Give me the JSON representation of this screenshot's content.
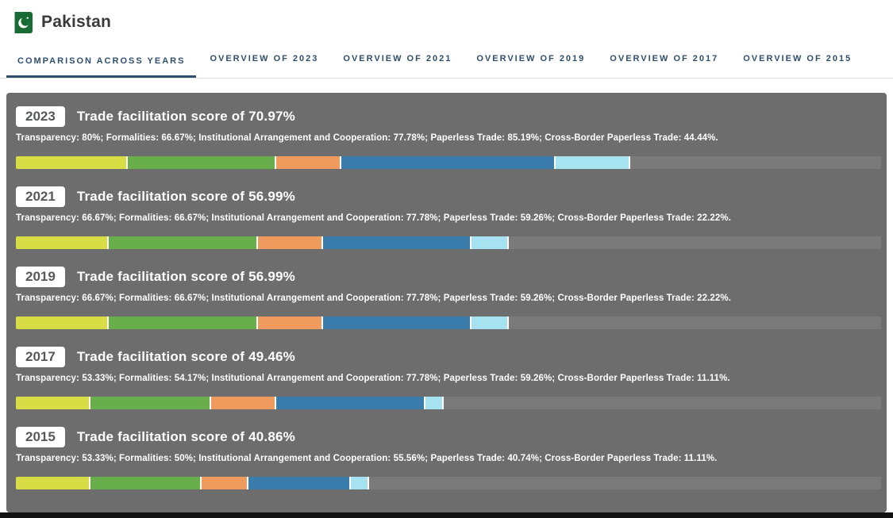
{
  "header": {
    "title": "Pakistan",
    "flag_colors": {
      "green": "#176b33",
      "white": "#ffffff"
    }
  },
  "tabs": [
    {
      "label": "Comparison across years",
      "active": true
    },
    {
      "label": "Overview of 2023",
      "active": false
    },
    {
      "label": "Overview of 2021",
      "active": false
    },
    {
      "label": "Overview of 2019",
      "active": false
    },
    {
      "label": "Overview of 2017",
      "active": false
    },
    {
      "label": "Overview of 2015",
      "active": false
    }
  ],
  "segment_names": [
    "transparency",
    "formalities",
    "institutional-arrangement-and-cooperation",
    "paperless-trade",
    "cross-border-paperless-trade"
  ],
  "segment_colors": [
    "#d8dd45",
    "#68ae4b",
    "#f09b5e",
    "#3a7cab",
    "#a6e2ef"
  ],
  "panel_colors": {
    "background": "#6d6d6d",
    "track": "#7a7a7a",
    "separator": "#ffffff"
  },
  "accent_color": "#2f4f6e",
  "years": [
    {
      "year": "2023",
      "score_label": "Trade facilitation score of 70.97%",
      "detail": "Transparency: 80%; Formalities: 66.67%; Institutional Arrangement and Cooperation: 77.78%; Paperless Trade: 85.19%; Cross-Border Paperless Trade: 44.44%.",
      "segments": [
        12.9032,
        17.2043,
        7.5269,
        24.7312,
        8.6022
      ]
    },
    {
      "year": "2021",
      "score_label": "Trade facilitation score of 56.99%",
      "detail": "Transparency: 66.67%; Formalities: 66.67%; Institutional Arrangement and Cooperation: 77.78%; Paperless Trade: 59.26%; Cross-Border Paperless Trade: 22.22%.",
      "segments": [
        10.7527,
        17.2043,
        7.5269,
        17.2043,
        4.3011
      ]
    },
    {
      "year": "2019",
      "score_label": "Trade facilitation score of 56.99%",
      "detail": "Transparency: 66.67%; Formalities: 66.67%; Institutional Arrangement and Cooperation: 77.78%; Paperless Trade: 59.26%; Cross-Border Paperless Trade: 22.22%.",
      "segments": [
        10.7527,
        17.2043,
        7.5269,
        17.2043,
        4.3011
      ]
    },
    {
      "year": "2017",
      "score_label": "Trade facilitation score of 49.46%",
      "detail": "Transparency: 53.33%; Formalities: 54.17%; Institutional Arrangement and Cooperation: 77.78%; Paperless Trade: 59.26%; Cross-Border Paperless Trade: 11.11%.",
      "segments": [
        8.6022,
        13.9785,
        7.5269,
        17.2043,
        2.1505
      ]
    },
    {
      "year": "2015",
      "score_label": "Trade facilitation score of 40.86%",
      "detail": "Transparency: 53.33%; Formalities: 50%; Institutional Arrangement and Cooperation: 55.56%; Paperless Trade: 40.74%; Cross-Border Paperless Trade: 11.11%.",
      "segments": [
        8.6022,
        12.9032,
        5.3763,
        11.828,
        2.1505
      ]
    }
  ],
  "chart_data": {
    "type": "bar",
    "subtype": "stacked-horizontal",
    "title": "Pakistan - Trade facilitation scores, comparison across years",
    "categories": [
      "2023",
      "2021",
      "2019",
      "2017",
      "2015"
    ],
    "totals": [
      70.97,
      56.99,
      56.99,
      49.46,
      40.86
    ],
    "series": [
      {
        "name": "Transparency",
        "color": "#d8dd45",
        "values": [
          80,
          66.67,
          66.67,
          53.33,
          53.33
        ]
      },
      {
        "name": "Formalities",
        "color": "#68ae4b",
        "values": [
          66.67,
          66.67,
          66.67,
          54.17,
          50
        ]
      },
      {
        "name": "Institutional Arrangement and Cooperation",
        "color": "#f09b5e",
        "values": [
          77.78,
          77.78,
          77.78,
          77.78,
          55.56
        ]
      },
      {
        "name": "Paperless Trade",
        "color": "#3a7cab",
        "values": [
          85.19,
          59.26,
          59.26,
          59.26,
          40.74
        ]
      },
      {
        "name": "Cross-Border Paperless Trade",
        "color": "#a6e2ef",
        "values": [
          44.44,
          22.22,
          22.22,
          11.11,
          11.11
        ]
      }
    ],
    "xlim": [
      0,
      100
    ],
    "legend_position": "none",
    "grid": false
  }
}
